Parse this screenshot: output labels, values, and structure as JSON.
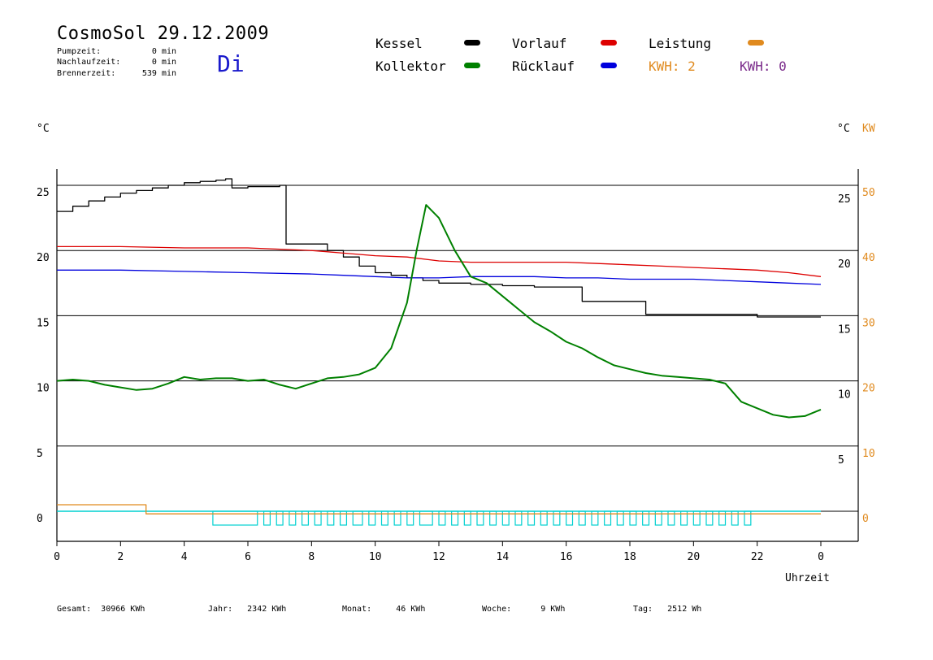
{
  "header": {
    "title": "CosmoSol 29.12.2009",
    "weekday": "Di",
    "pumpzeit_label": "Pumpzeit:",
    "pumpzeit_value": "0 min",
    "nachlauf_label": "Nachlaufzeit:",
    "nachlauf_value": "0 min",
    "brenner_label": "Brennerzeit:",
    "brenner_value": "539 min"
  },
  "legend": {
    "kessel": "Kessel",
    "kollektor": "Kollektor",
    "vorlauf": "Vorlauf",
    "ruecklauf": "Rücklauf",
    "leistung": "Leistung",
    "kwh1": "KWH: 2",
    "kwh2": "KWH: 0"
  },
  "colors": {
    "kessel": "#000000",
    "kollektor": "#008000",
    "vorlauf": "#dd0000",
    "ruecklauf": "#0000dd",
    "leistung": "#e08a1e",
    "kwh2": "#7a2a8a",
    "pump": "#00d0d0",
    "axis_kw": "#e08a1e"
  },
  "footer": {
    "gesamt": "Gesamt:  30966 KWh",
    "jahr": "Jahr:   2342 KWh",
    "monat": "Monat:     46 KWh",
    "woche": "Woche:      9 KWh",
    "tag": "Tag:   2512 Wh"
  },
  "chart_data": {
    "type": "line",
    "xlabel": "Uhrzeit",
    "ylabel_left": "°C",
    "ylabel_right_c": "°C",
    "ylabel_right_kw": "KW",
    "x_ticks": [
      "0",
      "2",
      "4",
      "6",
      "8",
      "10",
      "12",
      "14",
      "16",
      "18",
      "20",
      "22",
      "0"
    ],
    "xlim": [
      0,
      24
    ],
    "ylim": [
      -2,
      27
    ],
    "y_ticks_left": [
      25,
      20,
      15,
      10,
      5,
      0
    ],
    "y_ticks_right_c": [
      25,
      20,
      15,
      10,
      5
    ],
    "y_ticks_right_kw": [
      50,
      40,
      30,
      20,
      10,
      0
    ],
    "grid_y": [
      25,
      20,
      15,
      10,
      5,
      0
    ],
    "series": [
      {
        "name": "Kessel",
        "color": "#000000",
        "step": true,
        "x": [
          0,
          0.5,
          1,
          1.5,
          2,
          2.5,
          3,
          3.5,
          4,
          4.5,
          5,
          5.3,
          5.5,
          6,
          7,
          7.2,
          8,
          8.5,
          9,
          9.5,
          10,
          10.5,
          11,
          11.5,
          12,
          13,
          14,
          15,
          16,
          16.5,
          17,
          18,
          18.5,
          19,
          20,
          21,
          22,
          23,
          24
        ],
        "y": [
          23.0,
          23.4,
          23.8,
          24.1,
          24.4,
          24.6,
          24.8,
          25.0,
          25.2,
          25.3,
          25.4,
          25.5,
          24.8,
          24.9,
          25.0,
          20.5,
          20.5,
          20.0,
          19.5,
          18.8,
          18.3,
          18.1,
          17.9,
          17.7,
          17.5,
          17.4,
          17.3,
          17.2,
          17.2,
          16.1,
          16.1,
          16.1,
          15.1,
          15.1,
          15.1,
          15.1,
          14.9,
          14.9,
          14.9
        ]
      },
      {
        "name": "Vorlauf",
        "color": "#dd0000",
        "x": [
          0,
          2,
          4,
          6,
          8,
          9,
          10,
          11,
          12,
          13,
          14,
          15,
          16,
          17,
          18,
          19,
          20,
          21,
          22,
          23,
          24
        ],
        "y": [
          20.3,
          20.3,
          20.2,
          20.2,
          20.0,
          19.8,
          19.6,
          19.5,
          19.2,
          19.1,
          19.1,
          19.1,
          19.1,
          19.0,
          18.9,
          18.8,
          18.7,
          18.6,
          18.5,
          18.3,
          18.0
        ]
      },
      {
        "name": "Rücklauf",
        "color": "#0000dd",
        "x": [
          0,
          2,
          4,
          6,
          8,
          9,
          10,
          11,
          12,
          13,
          14,
          15,
          16,
          17,
          18,
          19,
          20,
          21,
          22,
          23,
          24
        ],
        "y": [
          18.5,
          18.5,
          18.4,
          18.3,
          18.2,
          18.1,
          18.0,
          17.9,
          17.9,
          18.0,
          18.0,
          18.0,
          17.9,
          17.9,
          17.8,
          17.8,
          17.8,
          17.7,
          17.6,
          17.5,
          17.4
        ]
      },
      {
        "name": "Kollektor",
        "color": "#008000",
        "x": [
          0,
          0.5,
          1,
          1.5,
          2,
          2.5,
          3,
          3.5,
          4,
          4.5,
          5,
          5.5,
          6,
          6.5,
          7,
          7.5,
          8,
          8.5,
          9,
          9.5,
          10,
          10.5,
          11,
          11.3,
          11.6,
          12,
          12.5,
          13,
          13.5,
          14,
          14.5,
          15,
          15.5,
          16,
          16.5,
          17,
          17.5,
          18,
          18.5,
          19,
          19.5,
          20,
          20.5,
          21,
          21.5,
          22,
          22.5,
          23,
          23.5,
          24
        ],
        "y": [
          10.0,
          10.1,
          10.0,
          9.7,
          9.5,
          9.3,
          9.4,
          9.8,
          10.3,
          10.1,
          10.2,
          10.2,
          10.0,
          10.1,
          9.7,
          9.4,
          9.8,
          10.2,
          10.3,
          10.5,
          11.0,
          12.5,
          16.0,
          20.0,
          23.5,
          22.5,
          20.0,
          18.0,
          17.5,
          16.5,
          15.5,
          14.5,
          13.8,
          13.0,
          12.5,
          11.8,
          11.2,
          10.9,
          10.6,
          10.4,
          10.3,
          10.2,
          10.1,
          9.8,
          8.4,
          7.9,
          7.4,
          7.2,
          7.3,
          7.8
        ]
      },
      {
        "name": "Leistung",
        "color": "#e08a1e",
        "step": true,
        "x": [
          0,
          2.8,
          2.8,
          24
        ],
        "y": [
          0.5,
          0.5,
          -0.2,
          -0.2
        ]
      }
    ],
    "pump_periods": [
      [
        4.9,
        6.3
      ],
      [
        6.5,
        6.7
      ],
      [
        6.9,
        7.1
      ],
      [
        7.3,
        7.5
      ],
      [
        7.7,
        7.9
      ],
      [
        8.1,
        8.3
      ],
      [
        8.5,
        8.7
      ],
      [
        8.9,
        9.1
      ],
      [
        9.3,
        9.6
      ],
      [
        9.8,
        10.0
      ],
      [
        10.2,
        10.4
      ],
      [
        10.6,
        10.8
      ],
      [
        11.0,
        11.2
      ],
      [
        11.4,
        11.8
      ],
      [
        12.0,
        12.2
      ],
      [
        12.4,
        12.6
      ],
      [
        12.8,
        13.0
      ],
      [
        13.2,
        13.4
      ],
      [
        13.6,
        13.8
      ],
      [
        14.0,
        14.2
      ],
      [
        14.4,
        14.6
      ],
      [
        14.8,
        15.0
      ],
      [
        15.2,
        15.4
      ],
      [
        15.6,
        15.8
      ],
      [
        16.0,
        16.2
      ],
      [
        16.4,
        16.6
      ],
      [
        16.8,
        17.0
      ],
      [
        17.2,
        17.4
      ],
      [
        17.6,
        17.8
      ],
      [
        18.0,
        18.2
      ],
      [
        18.4,
        18.6
      ],
      [
        18.8,
        19.0
      ],
      [
        19.2,
        19.4
      ],
      [
        19.6,
        19.8
      ],
      [
        20.0,
        20.2
      ],
      [
        20.4,
        20.6
      ],
      [
        20.8,
        21.0
      ],
      [
        21.2,
        21.4
      ],
      [
        21.6,
        21.8
      ]
    ]
  }
}
